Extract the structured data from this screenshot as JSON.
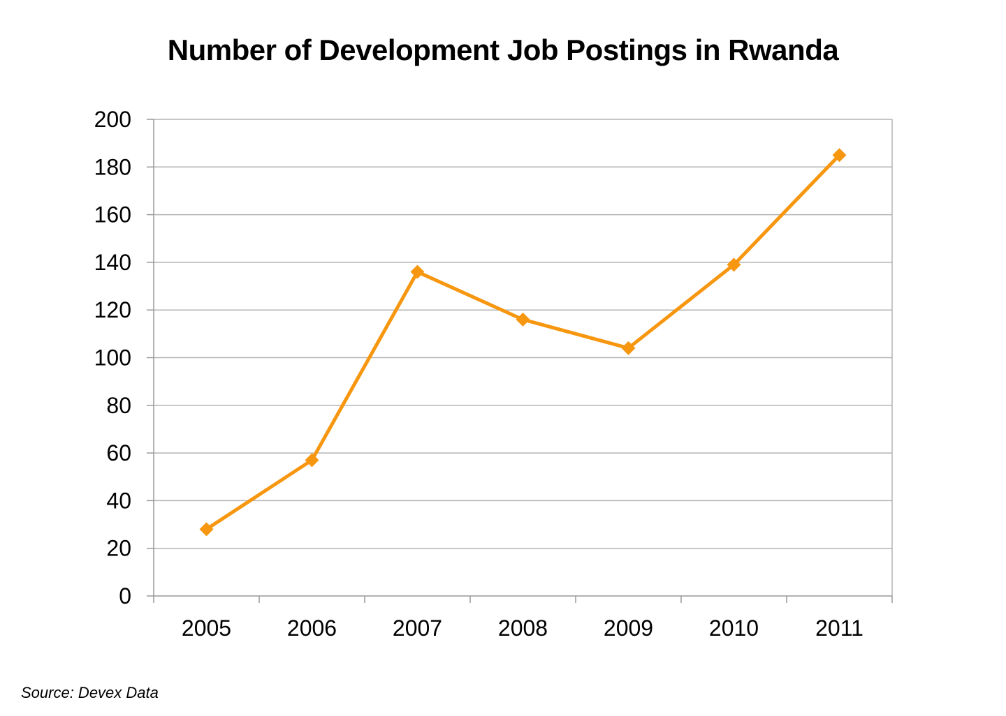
{
  "chart_data": {
    "type": "line",
    "title": "Number of Development Job Postings in Rwanda",
    "xlabel": "",
    "ylabel": "",
    "categories": [
      "2005",
      "2006",
      "2007",
      "2008",
      "2009",
      "2010",
      "2011"
    ],
    "series": [
      {
        "values": [
          28,
          57,
          136,
          116,
          104,
          139,
          185
        ],
        "color": "#f7960f",
        "marker": "diamond"
      }
    ],
    "ylim": [
      0,
      200
    ],
    "yticks": [
      0,
      20,
      40,
      60,
      80,
      100,
      120,
      140,
      160,
      180,
      200
    ],
    "grid": true,
    "legend": "none"
  },
  "footer": {
    "source": "Source: Devex Data"
  },
  "colors": {
    "line": "#f7960f",
    "grid": "#b3b3b3",
    "axis": "#999999"
  }
}
